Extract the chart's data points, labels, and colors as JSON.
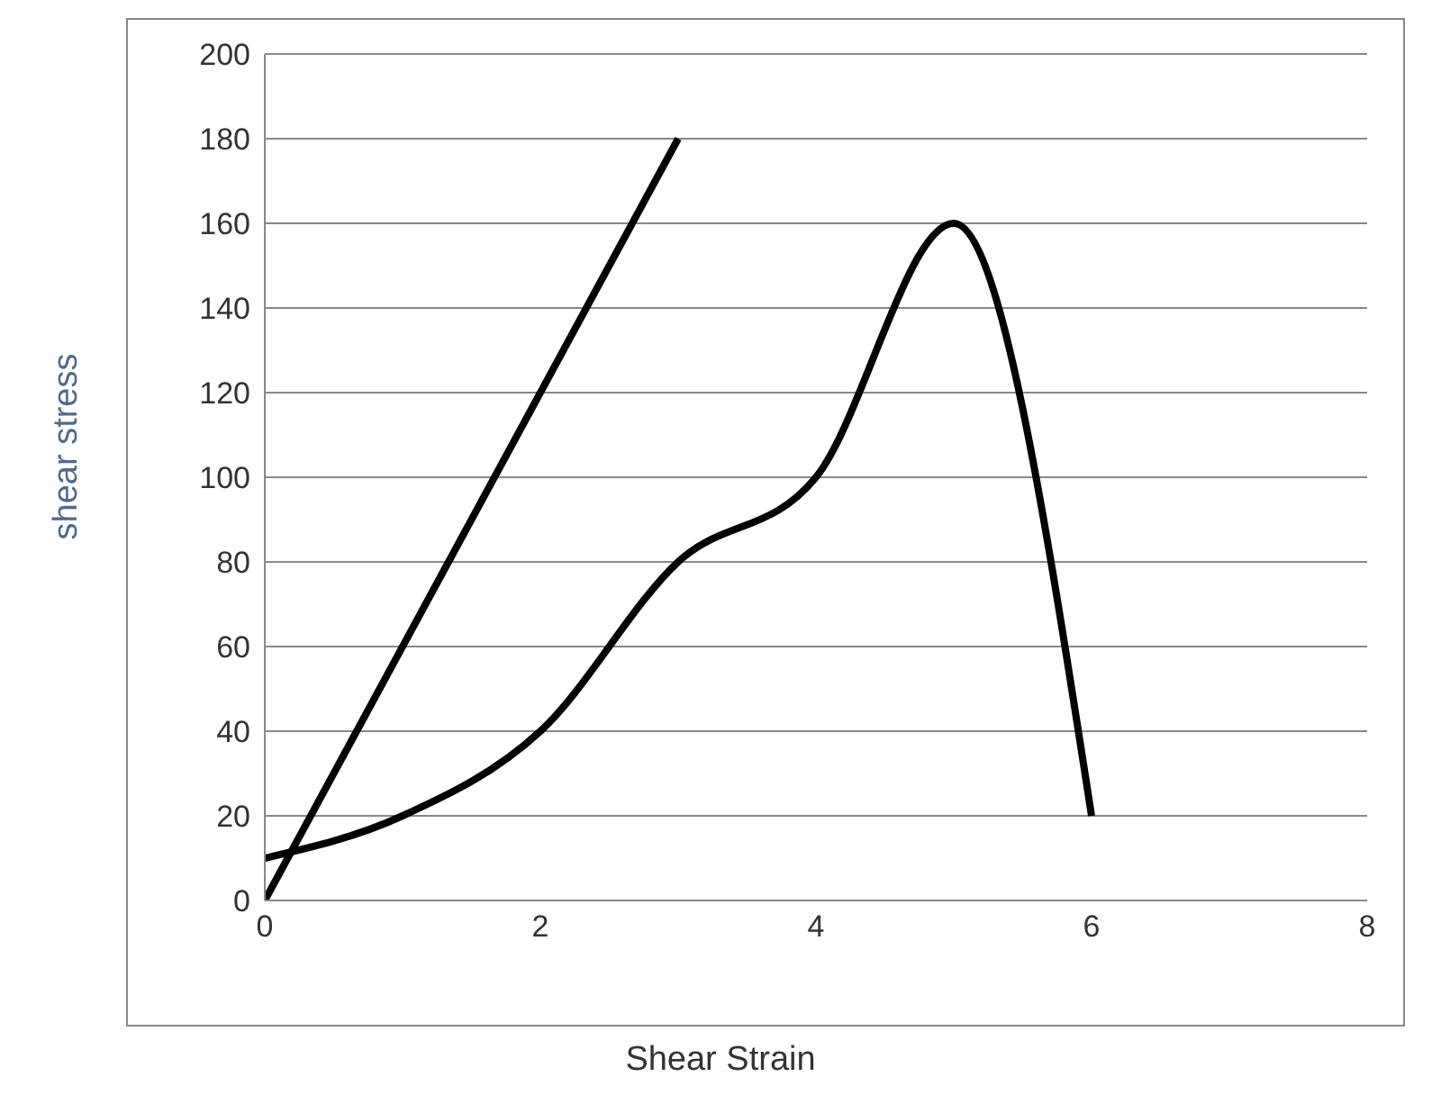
{
  "chart_data": {
    "type": "line",
    "xlabel": "Shear Strain",
    "ylabel": "shear stress",
    "series": [
      {
        "color": "#000000",
        "x": [
          0,
          3
        ],
        "values": [
          0,
          180
        ]
      },
      {
        "color": "#000000",
        "x": [
          0,
          1,
          2,
          3,
          4,
          5,
          6
        ],
        "values": [
          10,
          20,
          40,
          80,
          100,
          160,
          20
        ]
      }
    ],
    "xlim": [
      0,
      8
    ],
    "xticks": [
      0,
      2,
      4,
      6,
      8
    ],
    "ylim": [
      0,
      200
    ],
    "yticks": [
      0,
      20,
      40,
      60,
      80,
      100,
      120,
      140,
      160,
      180,
      200
    ],
    "grid": "y",
    "marker": "none",
    "line_style": "solid"
  }
}
